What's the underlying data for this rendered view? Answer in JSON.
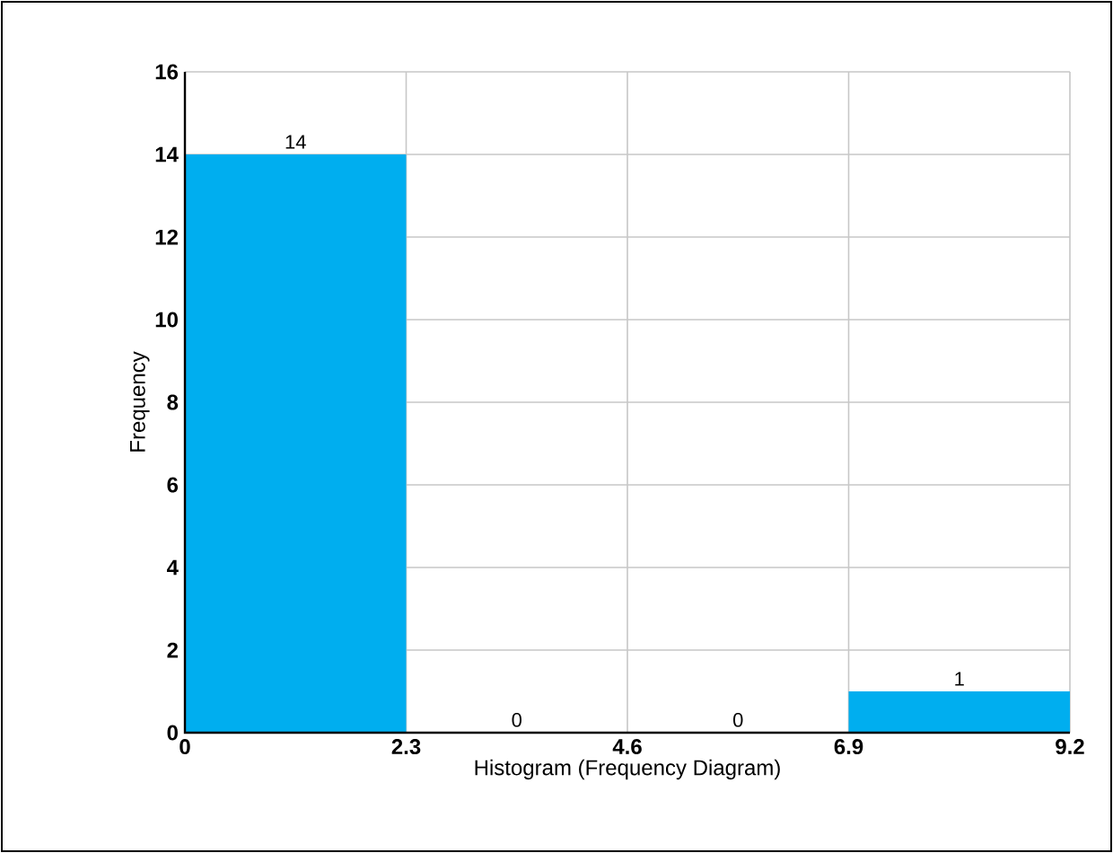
{
  "chart_data": {
    "type": "histogram",
    "xlabel": "Histogram (Frequency Diagram)",
    "ylabel": "Frequency",
    "bins": [
      0,
      2.3,
      4.6,
      6.9,
      9.2
    ],
    "values": [
      14,
      0,
      0,
      1
    ],
    "color": "#00aeef",
    "xlim": [
      0,
      9.2
    ],
    "xticks": [
      0,
      2.3,
      4.6,
      6.9,
      9.2
    ],
    "ylim": [
      0,
      16
    ],
    "yticks": [
      0,
      2,
      4,
      6,
      8,
      10,
      12,
      14,
      16
    ],
    "grid": true,
    "data_labels": true
  }
}
